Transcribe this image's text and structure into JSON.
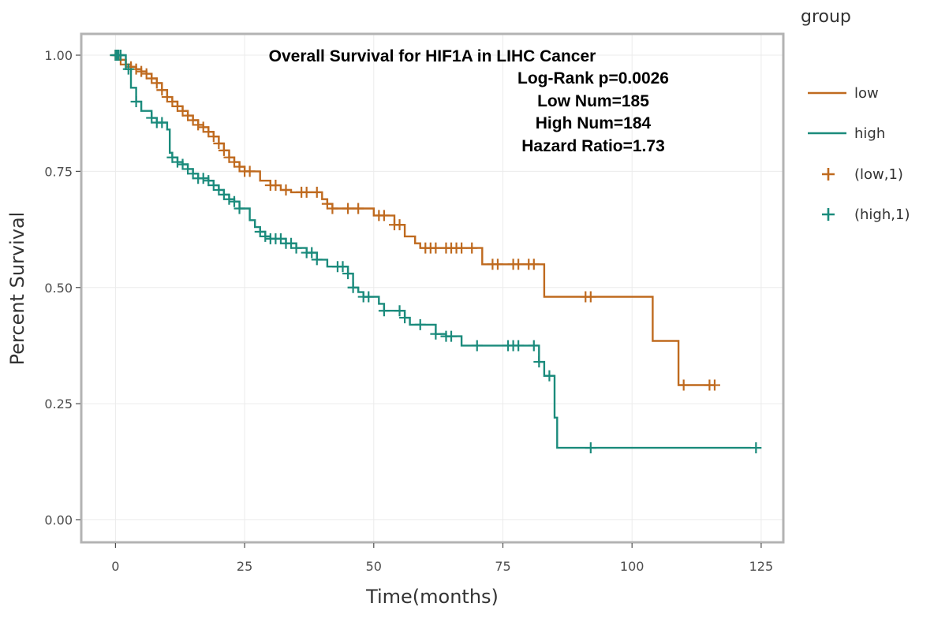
{
  "chart_data": {
    "type": "line",
    "subtype": "kaplan-meier",
    "xlabel": "Time(months)",
    "ylabel": "Percent Survival",
    "xlim": [
      -6,
      128
    ],
    "ylim": [
      -0.05,
      1.05
    ],
    "x_ticks": [
      0,
      25,
      50,
      75,
      100,
      125
    ],
    "y_ticks": [
      0.0,
      0.25,
      0.5,
      0.75,
      1.0
    ],
    "x_tick_labels": [
      "0",
      "25",
      "50",
      "75",
      "100",
      "125"
    ],
    "y_tick_labels": [
      "0.00",
      "0.25",
      "0.50",
      "0.75",
      "1.00"
    ],
    "grid": true,
    "legend": {
      "title": "group",
      "position": "right",
      "line_entries": [
        "low",
        "high"
      ],
      "censor_entries": [
        "(low,1)",
        "(high,1)"
      ]
    },
    "annotations": [
      "Overall Survival for HIF1A in LIHC Cancer",
      "Log-Rank p=0.0026",
      "Low Num=185",
      "High Num=184",
      "Hazard Ratio=1.73"
    ],
    "series": [
      {
        "name": "low",
        "color": "#bf6a1f",
        "steps": [
          [
            0,
            1.0
          ],
          [
            1,
            0.99
          ],
          [
            2,
            0.98
          ],
          [
            3,
            0.975
          ],
          [
            4,
            0.97
          ],
          [
            5,
            0.965
          ],
          [
            6,
            0.96
          ],
          [
            7,
            0.95
          ],
          [
            8,
            0.94
          ],
          [
            9,
            0.925
          ],
          [
            10,
            0.91
          ],
          [
            11,
            0.9
          ],
          [
            12,
            0.89
          ],
          [
            13,
            0.88
          ],
          [
            14,
            0.87
          ],
          [
            15,
            0.86
          ],
          [
            16,
            0.85
          ],
          [
            17,
            0.845
          ],
          [
            18,
            0.835
          ],
          [
            19,
            0.825
          ],
          [
            20,
            0.81
          ],
          [
            21,
            0.795
          ],
          [
            22,
            0.78
          ],
          [
            23,
            0.77
          ],
          [
            24,
            0.76
          ],
          [
            25,
            0.75
          ],
          [
            28,
            0.73
          ],
          [
            30,
            0.72
          ],
          [
            32,
            0.71
          ],
          [
            34,
            0.705
          ],
          [
            40,
            0.69
          ],
          [
            41,
            0.68
          ],
          [
            42,
            0.67
          ],
          [
            50,
            0.655
          ],
          [
            54,
            0.635
          ],
          [
            56,
            0.61
          ],
          [
            58,
            0.595
          ],
          [
            59,
            0.585
          ],
          [
            71,
            0.55
          ],
          [
            83,
            0.48
          ],
          [
            104,
            0.385
          ],
          [
            109,
            0.29
          ],
          [
            116,
            0.29
          ]
        ],
        "censor_x": [
          0,
          0.5,
          1,
          2,
          3,
          4,
          5,
          6,
          7,
          8,
          9,
          10,
          11,
          12,
          13,
          14,
          15,
          16,
          17,
          18,
          19,
          20,
          21,
          22,
          23,
          24,
          25,
          26,
          30,
          31,
          33,
          36,
          37,
          39,
          41,
          42,
          45,
          47,
          51,
          52,
          54,
          55,
          60,
          61,
          62,
          64,
          65,
          66,
          67,
          69,
          73,
          74,
          77,
          78,
          80,
          81,
          91,
          92,
          110,
          115,
          116
        ]
      },
      {
        "name": "high",
        "color": "#1b8b7c",
        "steps": [
          [
            0,
            1.0
          ],
          [
            2,
            0.97
          ],
          [
            3,
            0.93
          ],
          [
            4,
            0.9
          ],
          [
            5,
            0.88
          ],
          [
            7,
            0.865
          ],
          [
            8,
            0.855
          ],
          [
            10,
            0.84
          ],
          [
            10.5,
            0.79
          ],
          [
            11,
            0.78
          ],
          [
            12,
            0.77
          ],
          [
            13,
            0.765
          ],
          [
            14,
            0.755
          ],
          [
            15,
            0.745
          ],
          [
            16,
            0.735
          ],
          [
            18,
            0.73
          ],
          [
            19,
            0.72
          ],
          [
            20,
            0.71
          ],
          [
            21,
            0.7
          ],
          [
            22,
            0.69
          ],
          [
            23,
            0.685
          ],
          [
            24,
            0.67
          ],
          [
            26,
            0.645
          ],
          [
            27,
            0.63
          ],
          [
            28,
            0.62
          ],
          [
            29,
            0.61
          ],
          [
            30,
            0.605
          ],
          [
            33,
            0.595
          ],
          [
            35,
            0.585
          ],
          [
            37,
            0.575
          ],
          [
            39,
            0.56
          ],
          [
            41,
            0.545
          ],
          [
            45,
            0.53
          ],
          [
            46,
            0.5
          ],
          [
            47,
            0.49
          ],
          [
            48,
            0.48
          ],
          [
            51,
            0.465
          ],
          [
            52,
            0.45
          ],
          [
            56,
            0.435
          ],
          [
            57,
            0.42
          ],
          [
            62,
            0.4
          ],
          [
            64,
            0.395
          ],
          [
            67,
            0.375
          ],
          [
            82,
            0.34
          ],
          [
            83,
            0.31
          ],
          [
            85,
            0.22
          ],
          [
            85.5,
            0.155
          ],
          [
            123,
            0.155
          ]
        ],
        "censor_x": [
          0,
          0.3,
          0.6,
          1,
          2.5,
          4,
          7,
          8,
          9,
          11,
          12,
          13,
          14,
          15,
          16,
          17,
          18,
          19,
          20,
          21,
          22,
          23,
          24,
          28,
          29,
          30,
          31,
          32,
          33,
          34,
          35,
          37,
          38,
          39,
          43,
          44,
          45,
          46,
          48,
          49,
          52,
          55,
          56,
          59,
          62,
          64,
          65,
          70,
          76,
          77,
          78,
          81,
          82,
          84,
          92,
          124
        ]
      }
    ]
  }
}
